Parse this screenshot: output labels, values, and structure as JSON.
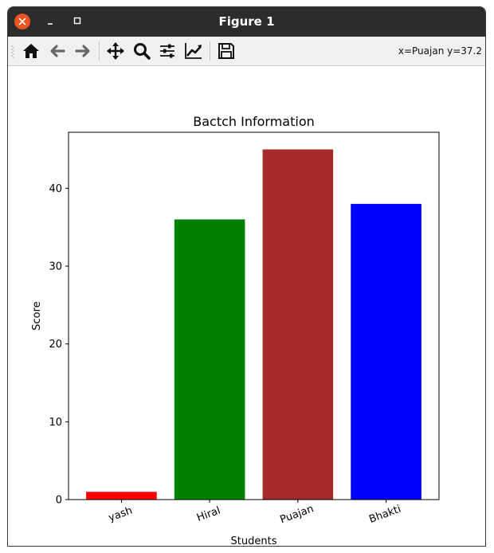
{
  "window": {
    "title": "Figure 1",
    "coords_readout": "x=Puajan y=37.2"
  },
  "toolbar": {
    "icons": [
      "home-icon",
      "back-arrow-icon",
      "forward-arrow-icon",
      "pan-move-icon",
      "zoom-magnifier-icon",
      "configure-subplots-icon",
      "edit-axes-icon",
      "save-floppy-icon"
    ]
  },
  "chart_data": {
    "type": "bar",
    "title": "Bactch Information",
    "xlabel": "Students",
    "ylabel": "Score",
    "categories": [
      "yash",
      "Hiral",
      "Puajan",
      "Bhakti"
    ],
    "values": [
      1,
      36,
      45,
      38
    ],
    "colors": [
      "#ff0000",
      "#008000",
      "#a52a2a",
      "#0000ff"
    ],
    "ylim": [
      0,
      47.2
    ],
    "yticks": [
      0,
      10,
      20,
      30,
      40
    ],
    "grid": false,
    "xtick_rotation": 20
  }
}
